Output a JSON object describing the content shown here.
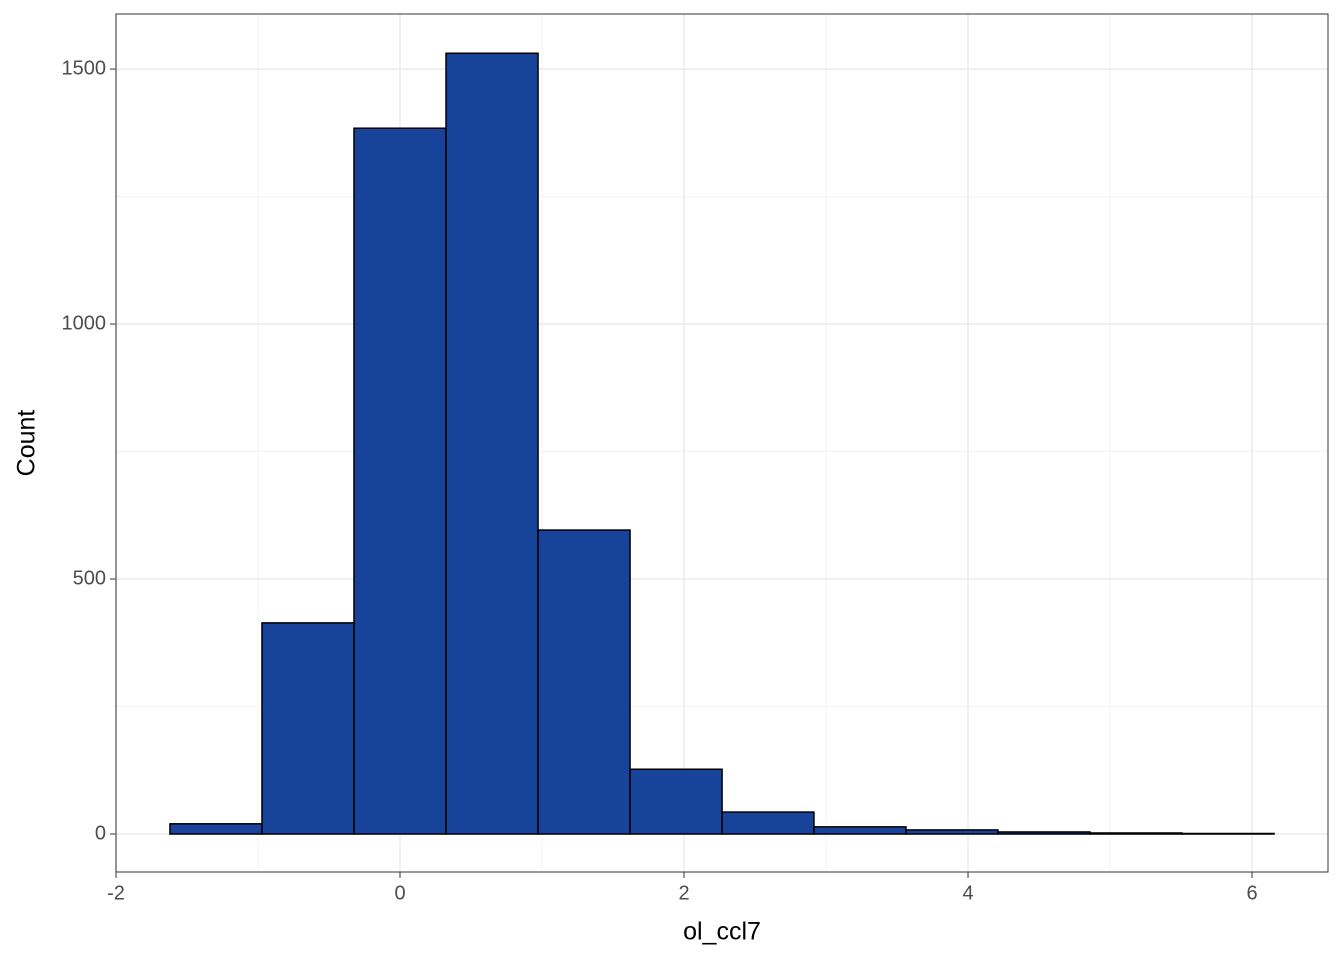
{
  "chart_data": {
    "type": "histogram",
    "x_label": "ol_ccl7",
    "y_label": "Count",
    "bins": [
      -1.62,
      -0.972,
      -0.324,
      0.324,
      0.972,
      1.62,
      2.268,
      2.915,
      3.563,
      4.211,
      4.859,
      5.507,
      6.155
    ],
    "counts": [
      20,
      414,
      1384,
      1531,
      596,
      127,
      43,
      14,
      8,
      4,
      2,
      1
    ],
    "color": "#18439a",
    "edgecolor": "#000000",
    "xlim": [
      -2,
      6.535
    ],
    "xticks": [
      -2,
      0,
      2,
      4,
      6
    ],
    "xminor": [
      -1,
      1,
      3,
      5
    ],
    "ylim": [
      -74.5,
      1608
    ],
    "yticks": [
      0,
      500,
      1000,
      1500
    ],
    "yminor": [
      250,
      750,
      1250
    ],
    "grid": true
  }
}
